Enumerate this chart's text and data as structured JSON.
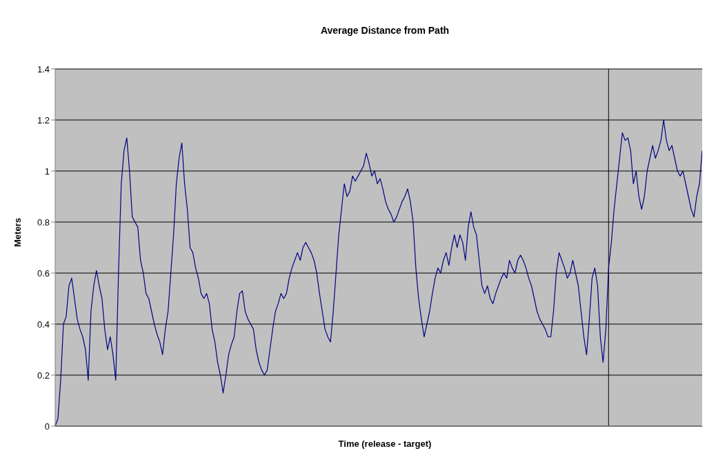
{
  "chart_data": {
    "type": "line",
    "title": "Average Distance from Path",
    "xlabel": "Time (release - target)",
    "ylabel": "Meters",
    "categories": [
      null,
      null,
      null,
      null,
      null,
      null,
      null,
      null,
      null,
      null,
      null,
      null,
      null,
      null,
      null,
      null,
      null,
      null,
      null,
      null,
      null,
      null,
      null,
      null,
      null,
      null,
      null,
      null,
      null,
      null,
      null,
      null,
      null,
      null,
      null,
      null,
      null,
      null,
      null,
      null,
      null,
      null,
      null,
      null,
      null,
      null,
      null,
      null,
      null,
      null,
      null,
      null,
      null,
      null,
      null,
      null,
      null,
      null,
      null,
      null,
      null,
      null,
      null,
      null,
      null,
      null,
      null,
      null,
      null,
      null,
      null,
      null,
      null,
      null,
      null,
      null,
      null,
      null,
      null,
      null,
      null,
      null,
      null,
      null,
      null,
      null,
      null,
      null,
      null,
      null,
      null,
      null,
      null,
      null,
      null,
      null,
      null,
      null,
      null,
      null,
      null,
      null,
      null,
      null,
      null,
      null,
      null,
      null,
      null,
      null,
      null,
      null,
      null,
      null,
      null,
      null,
      null,
      null,
      null,
      null,
      null,
      null,
      null,
      null,
      null,
      null,
      null,
      null,
      null,
      null,
      null,
      null,
      null,
      null,
      null,
      null,
      null,
      null,
      null,
      null,
      null,
      null,
      null,
      null,
      null,
      null,
      null,
      null,
      null,
      null,
      null,
      null,
      null,
      null,
      null,
      null,
      null,
      null,
      null,
      null,
      null,
      null,
      null,
      null,
      null,
      null,
      null,
      null,
      null,
      null,
      null,
      null,
      null,
      null,
      null,
      null,
      null,
      null,
      null,
      null,
      null,
      null,
      null,
      null,
      null,
      null,
      null,
      null,
      null,
      null,
      null,
      null,
      null,
      null,
      null,
      null,
      null,
      null,
      null,
      null,
      null,
      null,
      null,
      null,
      null,
      null,
      null,
      null,
      null,
      null,
      null,
      null,
      null,
      null,
      null,
      null,
      null,
      null,
      null,
      null,
      null,
      null,
      null,
      null,
      null,
      null,
      null,
      null,
      null,
      null,
      null,
      null,
      null,
      null,
      null,
      null
    ],
    "series": [
      {
        "color": "#000080",
        "values": [
          0.0,
          0.03,
          0.18,
          0.4,
          0.43,
          0.55,
          0.58,
          0.5,
          0.42,
          0.38,
          0.35,
          0.3,
          0.18,
          0.45,
          0.55,
          0.61,
          0.55,
          0.5,
          0.38,
          0.3,
          0.35,
          0.28,
          0.18,
          0.6,
          0.95,
          1.08,
          1.13,
          1.0,
          0.82,
          0.8,
          0.78,
          0.65,
          0.6,
          0.52,
          0.5,
          0.45,
          0.4,
          0.36,
          0.33,
          0.28,
          0.38,
          0.45,
          0.6,
          0.75,
          0.95,
          1.05,
          1.11,
          0.95,
          0.85,
          0.7,
          0.68,
          0.62,
          0.58,
          0.52,
          0.5,
          0.52,
          0.48,
          0.38,
          0.33,
          0.25,
          0.2,
          0.13,
          0.2,
          0.28,
          0.32,
          0.35,
          0.45,
          0.52,
          0.53,
          0.45,
          0.42,
          0.4,
          0.38,
          0.3,
          0.25,
          0.22,
          0.2,
          0.22,
          0.3,
          0.38,
          0.45,
          0.48,
          0.52,
          0.5,
          0.52,
          0.58,
          0.62,
          0.65,
          0.68,
          0.65,
          0.7,
          0.72,
          0.7,
          0.68,
          0.65,
          0.6,
          0.52,
          0.45,
          0.38,
          0.35,
          0.33,
          0.45,
          0.6,
          0.75,
          0.85,
          0.95,
          0.9,
          0.92,
          0.98,
          0.96,
          0.98,
          1.0,
          1.02,
          1.07,
          1.03,
          0.98,
          1.0,
          0.95,
          0.97,
          0.93,
          0.88,
          0.85,
          0.83,
          0.8,
          0.82,
          0.85,
          0.88,
          0.9,
          0.93,
          0.88,
          0.8,
          0.62,
          0.5,
          0.42,
          0.35,
          0.4,
          0.45,
          0.52,
          0.58,
          0.62,
          0.6,
          0.65,
          0.68,
          0.63,
          0.7,
          0.75,
          0.7,
          0.75,
          0.72,
          0.65,
          0.78,
          0.84,
          0.78,
          0.75,
          0.65,
          0.55,
          0.52,
          0.55,
          0.5,
          0.48,
          0.52,
          0.55,
          0.58,
          0.6,
          0.58,
          0.65,
          0.62,
          0.6,
          0.65,
          0.67,
          0.65,
          0.62,
          0.58,
          0.55,
          0.5,
          0.45,
          0.42,
          0.4,
          0.38,
          0.35,
          0.35,
          0.45,
          0.6,
          0.68,
          0.65,
          0.62,
          0.58,
          0.6,
          0.65,
          0.6,
          0.55,
          0.45,
          0.35,
          0.28,
          0.42,
          0.58,
          0.62,
          0.55,
          0.35,
          0.25,
          0.38,
          0.62,
          0.72,
          0.85,
          0.95,
          1.05,
          1.15,
          1.12,
          1.13,
          1.08,
          0.95,
          1.0,
          0.9,
          0.85,
          0.9,
          1.0,
          1.05,
          1.1,
          1.05,
          1.08,
          1.12,
          1.2,
          1.12,
          1.08,
          1.1,
          1.05,
          1.0,
          0.98,
          1.0,
          0.95,
          0.9,
          0.85,
          0.82,
          0.9,
          0.95,
          1.08
        ]
      }
    ],
    "ylim": [
      0,
      1.4
    ],
    "yticks": [
      0,
      0.2,
      0.4,
      0.6,
      0.8,
      1,
      1.2,
      1.4
    ],
    "grid": "y",
    "marker": "none",
    "line_style": "solid",
    "tick_labels": "y"
  }
}
